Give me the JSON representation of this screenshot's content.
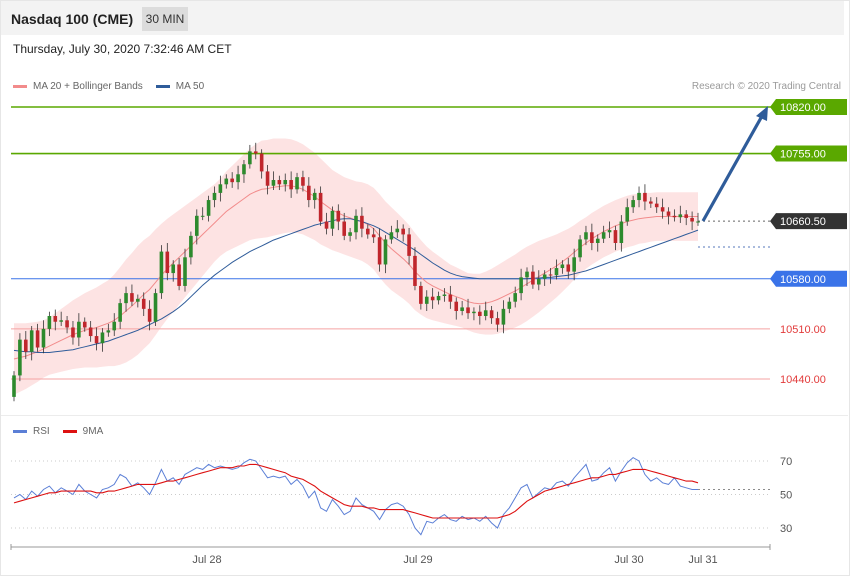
{
  "header": {
    "title": "Nasdaq 100 (CME)",
    "timeframe": "30 MIN",
    "datetime": "Thursday, July 30, 2020 7:32:46 AM CET"
  },
  "legend": {
    "ma20": "MA 20 + Bollinger Bands",
    "ma50": "MA 50",
    "rsi": "RSI",
    "ma9": "9MA",
    "credit": "Research © 2020 Trading Central"
  },
  "colors": {
    "ma20": "#f28b8b",
    "ma50": "#2f5c9a",
    "band": "#fde3e3",
    "up": "#2d8a2d",
    "down": "#c0262c",
    "resistance": "#5aa800",
    "current": "#333333",
    "support_blue": "#3a73e8",
    "support_red": "#e23b3b",
    "rsi": "#5b7fd6",
    "rsi_ma": "#dd1111"
  },
  "chart_data": {
    "type": "candlestick",
    "price_range": [
      10400,
      10860
    ],
    "x_labels": [
      "Jul 28",
      "Jul 29",
      "Jul 30",
      "Jul 31"
    ],
    "levels": [
      {
        "label": "10820.00",
        "value": 10820,
        "style": "resistance"
      },
      {
        "label": "10755.00",
        "value": 10755,
        "style": "resistance"
      },
      {
        "label": "10660.50",
        "value": 10660.5,
        "style": "current"
      },
      {
        "label": "10580.00",
        "value": 10580,
        "style": "support_blue"
      },
      {
        "label": "10510.00",
        "value": 10510,
        "style": "support_red"
      },
      {
        "label": "10440.00",
        "value": 10440,
        "style": "support_red"
      }
    ],
    "close": [
      10445,
      10495,
      10478,
      10508,
      10484,
      10510,
      10528,
      10520,
      10522,
      10512,
      10498,
      10520,
      10512,
      10500,
      10490,
      10505,
      10508,
      10520,
      10546,
      10560,
      10548,
      10552,
      10538,
      10520,
      10560,
      10618,
      10588,
      10600,
      10570,
      10610,
      10640,
      10668,
      10668,
      10690,
      10700,
      10712,
      10720,
      10715,
      10726,
      10740,
      10758,
      10755,
      10730,
      10710,
      10718,
      10712,
      10718,
      10705,
      10722,
      10710,
      10690,
      10700,
      10660,
      10650,
      10675,
      10660,
      10640,
      10645,
      10668,
      10650,
      10642,
      10638,
      10600,
      10635,
      10645,
      10650,
      10642,
      10612,
      10570,
      10545,
      10555,
      10550,
      10556,
      10558,
      10548,
      10535,
      10540,
      10532,
      10534,
      10528,
      10536,
      10525,
      10516,
      10538,
      10548,
      10560,
      10582,
      10590,
      10572,
      10580,
      10586,
      10585,
      10595,
      10600,
      10590,
      10610,
      10635,
      10645,
      10630,
      10636,
      10645,
      10648,
      10630,
      10660,
      10680,
      10690,
      10700,
      10688,
      10685,
      10680,
      10674,
      10668,
      10666,
      10670,
      10665,
      10660,
      10660
    ],
    "ma20": [
      10468,
      10470,
      10472,
      10475,
      10478,
      10482,
      10486,
      10490,
      10494,
      10498,
      10502,
      10505,
      10508,
      10510,
      10512,
      10515,
      10518,
      10522,
      10528,
      10535,
      10542,
      10550,
      10558,
      10565,
      10575,
      10585,
      10594,
      10602,
      10610,
      10618,
      10626,
      10634,
      10642,
      10650,
      10658,
      10666,
      10674,
      10680,
      10686,
      10692,
      10698,
      10702,
      10705,
      10706,
      10708,
      10709,
      10710,
      10710,
      10708,
      10705,
      10700,
      10695,
      10688,
      10682,
      10676,
      10672,
      10668,
      10665,
      10662,
      10660,
      10656,
      10650,
      10640,
      10630,
      10622,
      10615,
      10608,
      10600,
      10590,
      10582,
      10575,
      10570,
      10566,
      10562,
      10558,
      10555,
      10552,
      10548,
      10546,
      10545,
      10546,
      10548,
      10551,
      10555,
      10559,
      10563,
      10568,
      10573,
      10578,
      10583,
      10588,
      10593,
      10598,
      10604,
      10610,
      10617,
      10624,
      10630,
      10636,
      10641,
      10646,
      10650,
      10654,
      10657,
      10660,
      10662,
      10664,
      10665,
      10666,
      10667,
      10667,
      10667,
      10667,
      10667,
      10667,
      10667,
      10667
    ],
    "band_width": [
      50,
      48,
      46,
      44,
      42,
      40,
      40,
      42,
      44,
      46,
      48,
      50,
      52,
      54,
      56,
      58,
      60,
      64,
      68,
      72,
      74,
      76,
      76,
      75,
      74,
      72,
      70,
      68,
      66,
      64,
      62,
      60,
      58,
      56,
      54,
      54,
      56,
      58,
      60,
      62,
      64,
      66,
      68,
      68,
      68,
      67,
      66,
      65,
      64,
      63,
      62,
      61,
      60,
      58,
      56,
      55,
      54,
      54,
      54,
      55,
      56,
      57,
      58,
      58,
      58,
      57,
      56,
      55,
      54,
      52,
      50,
      48,
      46,
      44,
      42,
      41,
      40,
      40,
      41,
      42,
      44,
      46,
      48,
      49,
      50,
      51,
      52,
      52,
      51,
      50,
      48,
      46,
      44,
      42,
      40,
      38,
      37,
      36,
      36,
      36,
      36,
      36,
      36,
      36,
      36,
      36,
      35,
      35,
      34,
      34,
      34,
      34,
      34,
      34,
      34,
      34,
      34
    ],
    "ma50": [
      10480,
      10479,
      10478,
      10478,
      10477,
      10477,
      10477,
      10478,
      10479,
      10480,
      10481,
      10483,
      10485,
      10487,
      10489,
      10491,
      10493,
      10496,
      10499,
      10502,
      10505,
      10508,
      10512,
      10516,
      10520,
      10524,
      10529,
      10534,
      10540,
      10547,
      10555,
      10563,
      10571,
      10578,
      10585,
      10591,
      10597,
      10603,
      10608,
      10613,
      10618,
      10622,
      10626,
      10630,
      10634,
      10637,
      10640,
      10643,
      10646,
      10649,
      10652,
      10655,
      10657,
      10659,
      10661,
      10663,
      10664,
      10664,
      10662,
      10660,
      10657,
      10654,
      10650,
      10645,
      10640,
      10635,
      10630,
      10625,
      10620,
      10614,
      10608,
      10602,
      10597,
      10592,
      10588,
      10585,
      10583,
      10582,
      10581,
      10580,
      10580,
      10580,
      10580,
      10580,
      10580,
      10580,
      10580,
      10580,
      10581,
      10581,
      10582,
      10582,
      10583,
      10584,
      10585,
      10587,
      10589,
      10591,
      10594,
      10597,
      10600,
      10603,
      10606,
      10609,
      10612,
      10615,
      10618,
      10621,
      10624,
      10627,
      10630,
      10633,
      10636,
      10639,
      10642,
      10645,
      10648
    ],
    "rsi": [
      48,
      50,
      47,
      52,
      49,
      53,
      55,
      51,
      54,
      52,
      50,
      56,
      52,
      50,
      48,
      53,
      54,
      56,
      62,
      60,
      55,
      57,
      54,
      50,
      57,
      65,
      58,
      60,
      56,
      62,
      64,
      66,
      65,
      68,
      66,
      67,
      66,
      65,
      66,
      69,
      71,
      70,
      65,
      60,
      61,
      60,
      61,
      56,
      59,
      55,
      48,
      52,
      42,
      40,
      47,
      43,
      38,
      40,
      48,
      44,
      42,
      40,
      35,
      41,
      44,
      45,
      43,
      38,
      30,
      26,
      34,
      33,
      36,
      38,
      35,
      34,
      37,
      35,
      36,
      34,
      37,
      33,
      30,
      38,
      42,
      48,
      54,
      56,
      48,
      51,
      54,
      53,
      57,
      58,
      55,
      60,
      64,
      68,
      58,
      59,
      63,
      66,
      58,
      64,
      69,
      72,
      70,
      62,
      58,
      60,
      57,
      56,
      60,
      55,
      54,
      53,
      53
    ],
    "rsi_ma": [
      45,
      46,
      47,
      48,
      49,
      50,
      51,
      51,
      52,
      52,
      52,
      52,
      52,
      52,
      51,
      51,
      52,
      52,
      53,
      54,
      55,
      56,
      56,
      56,
      56,
      57,
      58,
      58,
      59,
      60,
      61,
      62,
      63,
      64,
      65,
      66,
      66,
      66,
      67,
      67,
      68,
      68,
      67,
      66,
      65,
      64,
      63,
      61,
      60,
      59,
      57,
      55,
      52,
      50,
      48,
      46,
      44,
      43,
      43,
      43,
      42,
      42,
      41,
      41,
      41,
      41,
      41,
      40,
      39,
      38,
      37,
      36,
      36,
      36,
      36,
      36,
      36,
      36,
      36,
      36,
      36,
      36,
      36,
      37,
      38,
      40,
      43,
      46,
      48,
      50,
      52,
      53,
      54,
      55,
      56,
      57,
      58,
      59,
      60,
      60,
      61,
      62,
      62,
      63,
      64,
      65,
      65,
      65,
      64,
      63,
      62,
      61,
      60,
      59,
      58,
      58,
      57
    ],
    "rsi_levels": [
      70,
      50,
      30
    ]
  }
}
